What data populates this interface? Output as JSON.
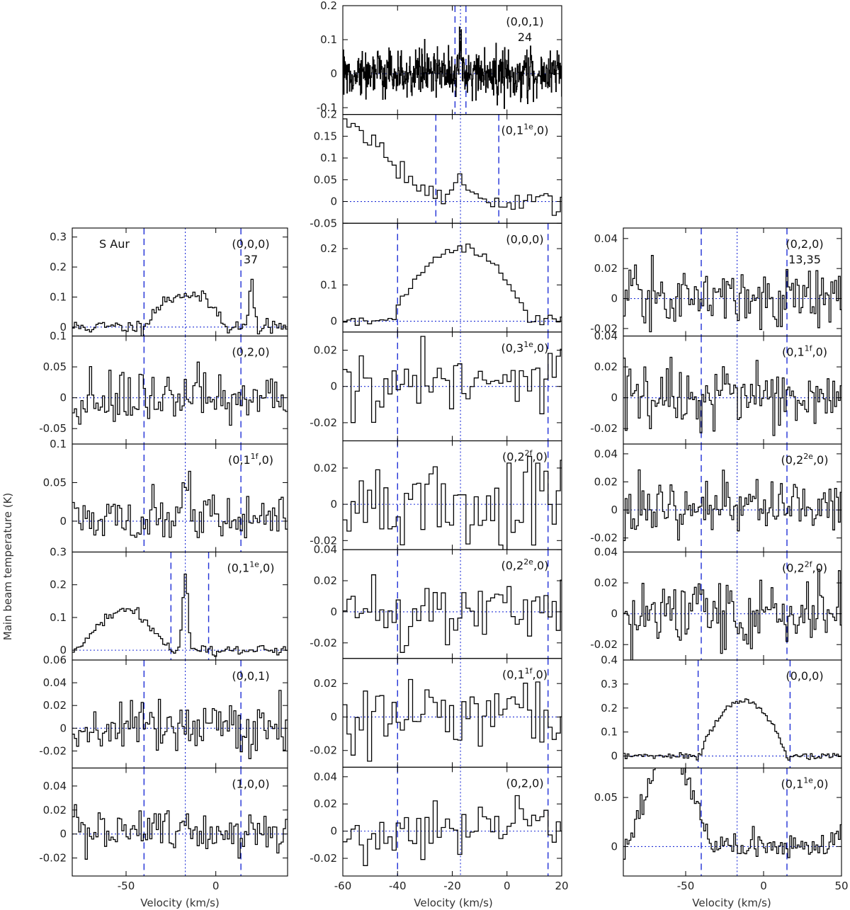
{
  "figure": {
    "ylabel": "Main beam temperature (K)",
    "xlabel": "Velocity (km/s)",
    "star_label": "S Aur"
  },
  "chart_data": [
    {
      "type": "line",
      "column": "left",
      "xlim": [
        -80,
        40
      ],
      "xticks": [
        -50,
        0
      ],
      "xlabel": "Velocity (km/s)",
      "markers": {
        "center": -17,
        "dashed": [
          -40,
          14
        ]
      },
      "panels": [
        {
          "label": "(0,0,0)",
          "sublabel": "37",
          "star": "S Aur",
          "ylim": [
            -0.03,
            0.33
          ],
          "yticks": [
            0,
            0.1,
            0.2,
            0.3
          ],
          "ytick_labels": [
            "0",
            "0.1",
            "0.2",
            "0.3"
          ],
          "profile": "parabola",
          "amp": 0.11,
          "vlsr": -17,
          "vexp": 24,
          "noise": 0.012,
          "lines": [
            {
              "v": 20,
              "amp": 0.16,
              "w": 1.2
            }
          ]
        },
        {
          "label": "(0,2,0)",
          "ylim": [
            -0.075,
            0.1
          ],
          "yticks": [
            -0.05,
            0,
            0.05,
            0.1
          ],
          "ytick_labels": [
            "-0.05",
            "0",
            "0.05",
            "0.1"
          ],
          "profile": "none",
          "noise": 0.022
        },
        {
          "label": "(0,1^{1f},0)",
          "ylim": [
            -0.04,
            0.1
          ],
          "yticks": [
            0,
            0.05,
            0.1
          ],
          "ytick_labels": [
            "0",
            "0.05",
            "0.1"
          ],
          "profile": "none",
          "noise": 0.015,
          "lines": [
            {
              "v": -17,
              "amp": 0.04,
              "w": 2
            }
          ]
        },
        {
          "label": "(0,1^{1e},0)",
          "ylim": [
            -0.03,
            0.3
          ],
          "yticks": [
            0,
            0.1,
            0.2,
            0.3
          ],
          "ytick_labels": [
            "0",
            "0.1",
            "0.2",
            "0.3"
          ],
          "markers": {
            "center": -17,
            "dashed": [
              -25,
              -4
            ]
          },
          "profile": "none",
          "noise": 0.007,
          "lines": [
            {
              "v": -17,
              "amp": 0.24,
              "w": 1.4
            }
          ],
          "ramp": {
            "from": -78,
            "to": -25,
            "peak_v": -50,
            "amp": 0.12
          }
        },
        {
          "label": "(0,0,1)",
          "ylim": [
            -0.035,
            0.06
          ],
          "yticks": [
            -0.02,
            0,
            0.02,
            0.04,
            0.06
          ],
          "ytick_labels": [
            "-0.02",
            "0",
            "0.02",
            "0.04",
            "0.06"
          ],
          "profile": "none",
          "noise": 0.011
        },
        {
          "label": "(1,0,0)",
          "ylim": [
            -0.035,
            0.055
          ],
          "yticks": [
            -0.02,
            0,
            0.02,
            0.04
          ],
          "ytick_labels": [
            "-0.02",
            "0",
            "0.02",
            "0.04"
          ],
          "profile": "none",
          "noise": 0.01
        }
      ]
    },
    {
      "type": "line",
      "column": "middle",
      "xlim": [
        -60,
        20
      ],
      "xticks": [
        -60,
        -40,
        -20,
        0,
        20
      ],
      "xlabel": "Velocity (km/s)",
      "markers": {
        "center": -17,
        "dashed": [
          -40,
          15
        ]
      },
      "panels": [
        {
          "label": "(0,0,1)",
          "sublabel": "24",
          "ylim": [
            -0.12,
            0.2
          ],
          "yticks": [
            -0.1,
            0,
            0.1,
            0.2
          ],
          "ytick_labels": [
            "-0.1",
            "0",
            "0.1",
            "0.2"
          ],
          "markers": {
            "center": -17,
            "dashed": [
              -19,
              -15
            ]
          },
          "profile": "none",
          "noise": 0.035,
          "bin": 0.15,
          "lines": [
            {
              "v": -17,
              "amp": 0.09,
              "w": 0.3
            }
          ]
        },
        {
          "label": "(0,1^{1e},0)",
          "ylim": [
            -0.05,
            0.2
          ],
          "yticks": [
            -0.05,
            0,
            0.05,
            0.1,
            0.15,
            0.2
          ],
          "ytick_labels": [
            "-0.05",
            "0",
            "0.05",
            "0.1",
            "0.15",
            "0.2"
          ],
          "markers": {
            "center": -17,
            "dashed": [
              -26,
              -3
            ]
          },
          "profile": "none",
          "noise": 0.012,
          "bin": 1.5,
          "lines": [
            {
              "v": -17,
              "amp": 0.06,
              "w": 3
            }
          ],
          "ramp": {
            "from": -60,
            "to": -26,
            "peak_v": -60,
            "amp": 0.2
          }
        },
        {
          "label": "(0,0,0)",
          "ylim": [
            -0.03,
            0.27
          ],
          "yticks": [
            0,
            0.1,
            0.2
          ],
          "ytick_labels": [
            "0",
            "0.1",
            "0.2"
          ],
          "profile": "parabola",
          "amp": 0.2,
          "vlsr": -17,
          "vexp": 25,
          "noise": 0.008,
          "bin": 1.5
        },
        {
          "label": "(0,3^{1e},0)",
          "ylim": [
            -0.03,
            0.03
          ],
          "yticks": [
            -0.02,
            0,
            0.02
          ],
          "ytick_labels": [
            "-0.02",
            "0",
            "0.02"
          ],
          "profile": "none",
          "noise": 0.011,
          "bin": 1.5
        },
        {
          "label": "(0,2^{2f},0)",
          "ylim": [
            -0.025,
            0.035
          ],
          "yticks": [
            -0.02,
            0,
            0.02
          ],
          "ytick_labels": [
            "-0.02",
            "0",
            "0.02"
          ],
          "profile": "none",
          "noise": 0.012,
          "bin": 1.5
        },
        {
          "label": "(0,2^{2e},0)",
          "ylim": [
            -0.03,
            0.04
          ],
          "yticks": [
            -0.02,
            0,
            0.02,
            0.04
          ],
          "ytick_labels": [
            "-0.02",
            "0",
            "0.02",
            "0.04"
          ],
          "profile": "none",
          "noise": 0.011,
          "bin": 1.5
        },
        {
          "label": "(0,1^{1f},0)",
          "ylim": [
            -0.03,
            0.035
          ],
          "yticks": [
            -0.02,
            0,
            0.02
          ],
          "ytick_labels": [
            "-0.02",
            "0",
            "0.02"
          ],
          "profile": "none",
          "noise": 0.012,
          "bin": 1.5
        },
        {
          "label": "(0,2,0)",
          "ylim": [
            -0.033,
            0.047
          ],
          "yticks": [
            -0.02,
            0,
            0.02,
            0.04
          ],
          "ytick_labels": [
            "-0.02",
            "0",
            "0.02",
            "0.04"
          ],
          "profile": "none",
          "noise": 0.01,
          "bin": 1.5
        }
      ]
    },
    {
      "type": "line",
      "column": "right",
      "xlim": [
        -90,
        50
      ],
      "xticks": [
        -50,
        0,
        50
      ],
      "xlabel": "Velocity (km/s)",
      "markers": {
        "center": -17,
        "dashed": [
          -40,
          15
        ]
      },
      "panels": [
        {
          "label": "(0,2,0)",
          "sublabel": "13,35",
          "ylim": [
            -0.025,
            0.047
          ],
          "yticks": [
            -0.02,
            0,
            0.02,
            0.04
          ],
          "ytick_labels": [
            "-0.02",
            "0",
            "0.02",
            "0.04"
          ],
          "profile": "none",
          "noise": 0.01
        },
        {
          "label": "(0,1^{1f},0)",
          "ylim": [
            -0.03,
            0.04
          ],
          "yticks": [
            -0.02,
            0,
            0.02,
            0.04
          ],
          "ytick_labels": [
            "-0.02",
            "0",
            "0.02",
            "0.04"
          ],
          "profile": "none",
          "noise": 0.01
        },
        {
          "label": "(0,2^{2e},0)",
          "ylim": [
            -0.03,
            0.047
          ],
          "yticks": [
            -0.02,
            0,
            0.02,
            0.04
          ],
          "ytick_labels": [
            "-0.02",
            "0",
            "0.02",
            "0.04"
          ],
          "profile": "none",
          "noise": 0.011
        },
        {
          "label": "(0,2^{2f},0)",
          "ylim": [
            -0.03,
            0.04
          ],
          "yticks": [
            -0.02,
            0,
            0.02,
            0.04
          ],
          "ytick_labels": [
            "-0.02",
            "0",
            "0.02",
            "0.04"
          ],
          "profile": "none",
          "noise": 0.01
        },
        {
          "label": "(0,0,0)",
          "ylim": [
            -0.05,
            0.4
          ],
          "yticks": [
            0,
            0.1,
            0.2,
            0.3,
            0.4
          ],
          "ytick_labels": [
            "0",
            "0.1",
            "0.2",
            "0.3",
            "0.4"
          ],
          "markers": {
            "center": -17,
            "dashed": [
              -42,
              17
            ]
          },
          "profile": "parabola",
          "amp": 0.23,
          "vlsr": -13,
          "vexp": 28,
          "noise": 0.006
        },
        {
          "label": "(0,1^{1e},0)",
          "ylim": [
            -0.03,
            0.08
          ],
          "yticks": [
            0,
            0.05
          ],
          "ytick_labels": [
            "0",
            "0.05"
          ],
          "profile": "none",
          "noise": 0.006,
          "lines": [
            {
              "v": 48,
              "amp": 0.015,
              "w": 3
            }
          ],
          "ramp": {
            "from": -88,
            "to": -33,
            "peak_v": -60,
            "amp": 0.09
          }
        }
      ]
    }
  ]
}
